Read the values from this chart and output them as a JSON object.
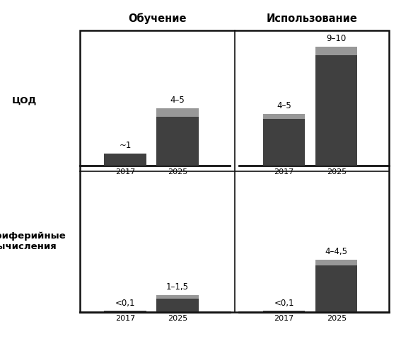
{
  "col_headers": [
    "Обучение",
    "Использование"
  ],
  "row_labels": [
    "ЦОД",
    "Периферийные\nвычисления"
  ],
  "x_labels": [
    "2017",
    "2025"
  ],
  "subplots": [
    {
      "row": 0,
      "col": 0,
      "bar_dark": [
        1.0,
        4.0
      ],
      "bar_light": [
        0.0,
        0.7
      ],
      "labels": [
        "~1",
        "4–5"
      ],
      "ylim": [
        0,
        11.0
      ]
    },
    {
      "row": 0,
      "col": 1,
      "bar_dark": [
        3.8,
        9.0
      ],
      "bar_light": [
        0.4,
        0.7
      ],
      "labels": [
        "4–5",
        "9–10"
      ],
      "ylim": [
        0,
        11.0
      ]
    },
    {
      "row": 1,
      "col": 0,
      "bar_dark": [
        0.07,
        1.05
      ],
      "bar_light": [
        0.0,
        0.3
      ],
      "labels": [
        "<0,1",
        "1–1,5"
      ],
      "ylim": [
        0,
        11.0
      ]
    },
    {
      "row": 1,
      "col": 1,
      "bar_dark": [
        0.07,
        3.8
      ],
      "bar_light": [
        0.0,
        0.45
      ],
      "labels": [
        "<0,1",
        "4–4,5"
      ],
      "ylim": [
        0,
        11.0
      ]
    }
  ],
  "dark_color": "#404040",
  "light_color": "#989898",
  "bar_width": 0.28,
  "bar_positions": [
    0.3,
    0.65
  ],
  "background_color": "#ffffff",
  "border_color": "#111111",
  "label_fontsize": 8.5,
  "header_fontsize": 10.5,
  "row_label_fontsize": 9.5,
  "tick_fontsize": 8
}
